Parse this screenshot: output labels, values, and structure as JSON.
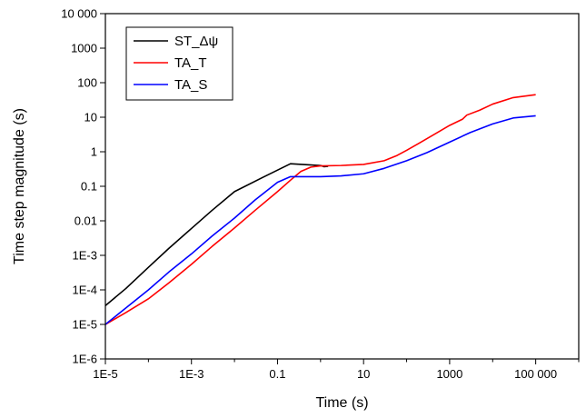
{
  "chart_data": {
    "type": "line",
    "title": "",
    "xlabel": "Time (s)",
    "ylabel": "Time step magnitude (s)",
    "x_scale": "log",
    "y_scale": "log",
    "xlim": [
      1e-05,
      1000000
    ],
    "ylim": [
      1e-06,
      10000
    ],
    "grid": false,
    "legend_position": "top-left",
    "x_ticks": [
      {
        "value": 1e-05,
        "label": "1E-5"
      },
      {
        "value": 0.001,
        "label": "1E-3"
      },
      {
        "value": 0.1,
        "label": "0.1"
      },
      {
        "value": 10,
        "label": "10"
      },
      {
        "value": 1000,
        "label": "1000"
      },
      {
        "value": 100000,
        "label": "100 000"
      }
    ],
    "y_ticks": [
      {
        "value": 1e-06,
        "label": "1E-6"
      },
      {
        "value": 1e-05,
        "label": "1E-5"
      },
      {
        "value": 0.0001,
        "label": "1E-4"
      },
      {
        "value": 0.001,
        "label": "1E-3"
      },
      {
        "value": 0.01,
        "label": "0.01"
      },
      {
        "value": 0.1,
        "label": "0.1"
      },
      {
        "value": 1,
        "label": "1"
      },
      {
        "value": 10,
        "label": "10"
      },
      {
        "value": 100,
        "label": "100"
      },
      {
        "value": 1000,
        "label": "1000"
      },
      {
        "value": 10000,
        "label": "10 000"
      }
    ],
    "series": [
      {
        "name": "ST_Δψ",
        "color": "#000000",
        "x": [
          1e-05,
          3e-05,
          0.0001,
          0.0003,
          0.001,
          0.003,
          0.01,
          0.045,
          0.2,
          0.5,
          1,
          1.2,
          1.5
        ],
        "y": [
          3.5e-05,
          0.00011,
          0.00045,
          0.0016,
          0.006,
          0.02,
          0.07,
          0.18,
          0.45,
          0.42,
          0.4,
          0.37,
          0.38
        ]
      },
      {
        "name": "TA_T",
        "color": "#ff0000",
        "x": [
          1e-05,
          3e-05,
          0.0001,
          0.0003,
          0.001,
          0.003,
          0.01,
          0.03,
          0.1,
          0.2,
          0.35,
          0.6,
          1,
          3,
          10,
          30,
          60,
          100,
          200,
          500,
          1000,
          2000,
          2500,
          5000,
          10000,
          30000,
          100000
        ],
        "y": [
          1e-05,
          2.2e-05,
          5.5e-05,
          0.00016,
          0.00055,
          0.0018,
          0.0062,
          0.02,
          0.07,
          0.15,
          0.27,
          0.36,
          0.39,
          0.4,
          0.43,
          0.55,
          0.78,
          1.1,
          1.8,
          3.5,
          5.8,
          8.8,
          11.5,
          16,
          24,
          37,
          45
        ]
      },
      {
        "name": "TA_S",
        "color": "#0000ff",
        "x": [
          1e-05,
          3e-05,
          0.0001,
          0.0003,
          0.001,
          0.003,
          0.01,
          0.03,
          0.1,
          0.2,
          0.5,
          1,
          3,
          10,
          30,
          100,
          300,
          1000,
          3000,
          10000,
          30000,
          100000
        ],
        "y": [
          1e-05,
          3e-05,
          0.0001,
          0.00033,
          0.0011,
          0.0036,
          0.012,
          0.04,
          0.13,
          0.19,
          0.19,
          0.19,
          0.2,
          0.23,
          0.33,
          0.55,
          0.95,
          1.9,
          3.6,
          6.4,
          9.5,
          11
        ]
      }
    ]
  }
}
